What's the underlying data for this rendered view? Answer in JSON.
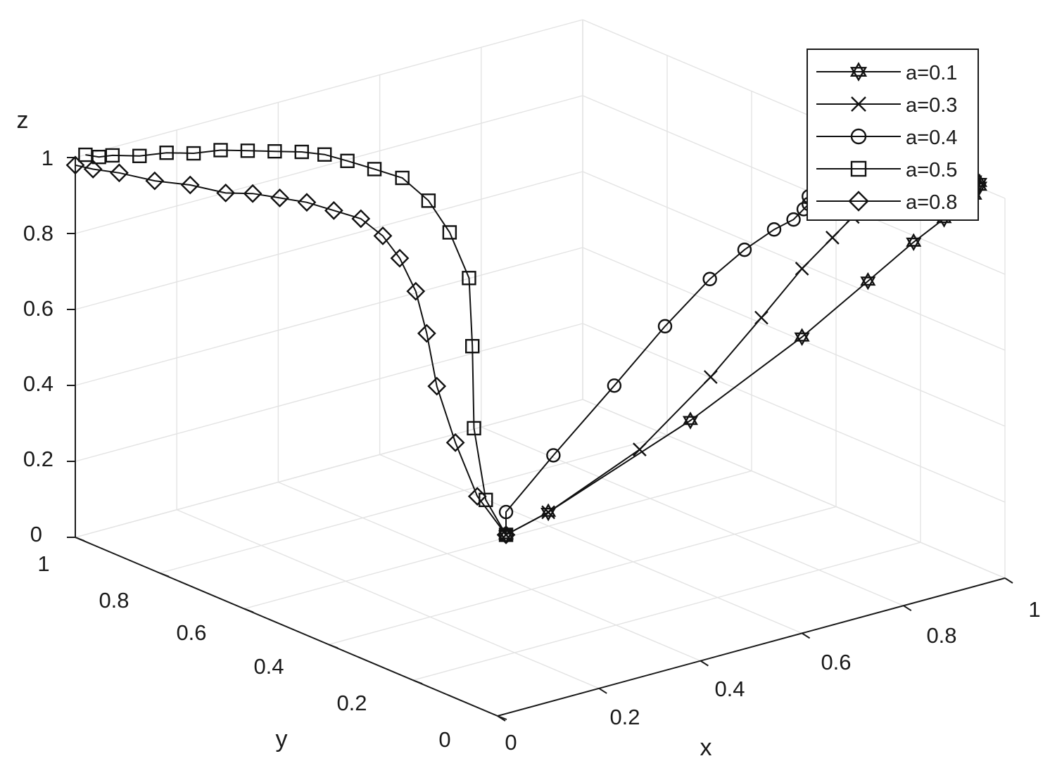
{
  "chart_data": {
    "type": "line3d",
    "title": "",
    "xlabel": "x",
    "ylabel": "y",
    "zlabel": "z",
    "xlim": [
      0,
      1
    ],
    "ylim": [
      0,
      1
    ],
    "zlim": [
      0,
      1
    ],
    "x_ticks": [
      "0",
      "0.2",
      "0.4",
      "0.6",
      "0.8",
      "1"
    ],
    "y_ticks": [
      "0",
      "0.2",
      "0.4",
      "0.6",
      "0.8",
      "1"
    ],
    "z_ticks": [
      "0",
      "0.2",
      "0.4",
      "0.6",
      "0.8",
      "1"
    ],
    "grid": true,
    "legend_position": "top-right",
    "start_point": {
      "x": 0.05,
      "y": 0.04,
      "z": 0.44
    },
    "series": [
      {
        "name": "a=0.1",
        "marker": "hexagram",
        "x": [
          0.1,
          0.38,
          0.6,
          0.73,
          0.82,
          0.88,
          0.92,
          0.94,
          0.95,
          0.95,
          0.94,
          0.92,
          0.88,
          0.82
        ],
        "z": [
          0.5,
          0.64,
          0.78,
          0.88,
          0.95,
          0.99,
          1.01,
          1.03,
          1.05,
          1.06,
          1.07,
          1.08,
          1.1,
          1.11
        ]
      },
      {
        "name": "a=0.3",
        "marker": "x",
        "x": [
          0.1,
          0.28,
          0.42,
          0.52,
          0.6,
          0.66,
          0.7,
          0.73,
          0.74,
          0.75,
          0.76,
          0.74
        ],
        "z": [
          0.5,
          0.6,
          0.74,
          0.86,
          0.96,
          1.02,
          1.06,
          1.08,
          1.1,
          1.11,
          1.12,
          1.13
        ]
      },
      {
        "name": "a=0.4",
        "marker": "circle",
        "x": [
          0.05,
          0.16,
          0.28,
          0.38,
          0.46,
          0.52,
          0.57,
          0.6,
          0.62,
          0.63,
          0.64,
          0.63
        ],
        "y": [
          0.04,
          0.06,
          0.06,
          0.06,
          0.05,
          0.04,
          0.03,
          0.02,
          0.02,
          0.02,
          0.02,
          0.02
        ],
        "z": [
          0.5,
          0.6,
          0.74,
          0.86,
          0.96,
          1.02,
          1.06,
          1.08,
          1.1,
          1.11,
          1.12,
          1.13
        ]
      },
      {
        "name": "a=0.5",
        "marker": "square",
        "x": [
          0.06,
          0.12,
          0.2,
          0.26,
          0.28,
          0.28,
          0.27,
          0.24,
          0.22,
          0.2,
          0.18,
          0.16,
          0.14,
          0.12,
          0.1,
          0.08,
          0.06,
          0.04,
          0.03,
          0.02
        ],
        "y": [
          0.1,
          0.2,
          0.3,
          0.38,
          0.45,
          0.5,
          0.55,
          0.58,
          0.62,
          0.65,
          0.68,
          0.72,
          0.76,
          0.8,
          0.84,
          0.88,
          0.92,
          0.96,
          0.98,
          1.0
        ],
        "z": [
          0.5,
          0.62,
          0.76,
          0.88,
          0.96,
          1.02,
          1.06,
          1.08,
          1.09,
          1.1,
          1.1,
          1.09,
          1.08,
          1.07,
          1.05,
          1.04,
          1.02,
          1.01,
          1.0,
          1.0
        ]
      },
      {
        "name": "a=0.8",
        "marker": "diamond",
        "x": [
          0.06,
          0.1,
          0.13,
          0.16,
          0.18,
          0.19,
          0.19,
          0.18,
          0.16,
          0.14,
          0.12,
          0.1,
          0.08,
          0.06,
          0.04,
          0.02,
          0.01,
          0.0
        ],
        "y": [
          0.12,
          0.22,
          0.3,
          0.36,
          0.41,
          0.46,
          0.5,
          0.54,
          0.58,
          0.62,
          0.66,
          0.7,
          0.74,
          0.8,
          0.86,
          0.92,
          0.97,
          1.0
        ],
        "z": [
          0.5,
          0.58,
          0.68,
          0.78,
          0.86,
          0.92,
          0.96,
          0.99,
          1.0,
          1.01,
          1.01,
          1.01,
          1.0,
          1.0,
          0.99,
          0.99,
          0.98,
          0.98
        ]
      }
    ]
  }
}
